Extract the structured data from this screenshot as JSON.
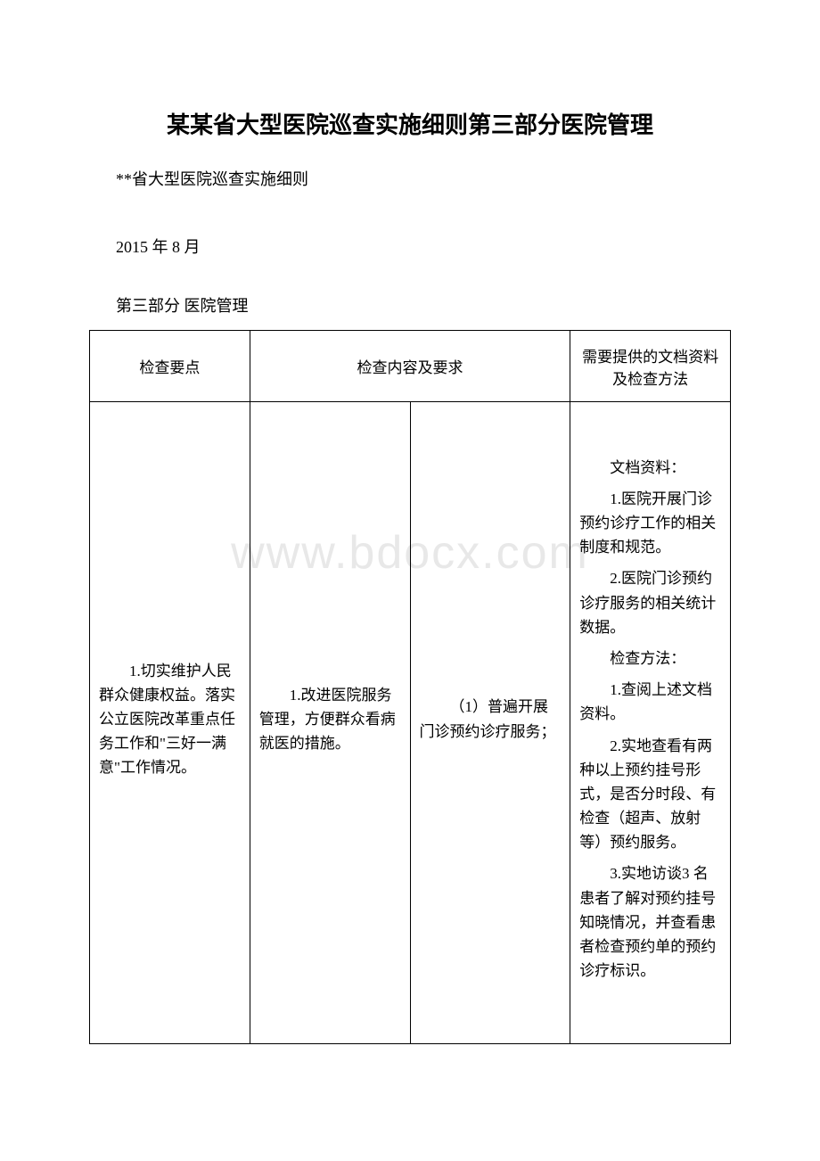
{
  "watermark_text": "www.bdocx.com",
  "watermark_color": "#e8e8e8",
  "title": "某某省大型医院巡查实施细则第三部分医院管理",
  "subtitle": "**省大型医院巡查实施细则",
  "date": "2015 年 8 月",
  "section_label": "第三部分 医院管理",
  "table": {
    "header": {
      "col1": "检查要点",
      "col2": "检查内容及要求",
      "col4": "需要提供的文档资料及检查方法"
    },
    "row1": {
      "col1": "1.切实维护人民群众健康权益。落实公立医院改革重点任务工作和\"三好一满意\"工作情况。",
      "col2": "1.改进医院服务管理，方便群众看病就医的措施。",
      "col3": "（1）普遍开展门诊预约诊疗服务；",
      "col4_items": [
        "文档资料：",
        "1.医院开展门诊预约诊疗工作的相关制度和规范。",
        "2.医院门诊预约诊疗服务的相关统计数据。",
        "检查方法：",
        "1.查阅上述文档资料。",
        "2.实地查看有两种以上预约挂号形式，是否分时段、有检查（超声、放射等）预约服务。",
        "3.实地访谈3 名患者了解对预约挂号知晓情况，并查看患者检查预约单的预约诊疗标识。"
      ]
    }
  },
  "colors": {
    "text": "#000000",
    "background": "#ffffff",
    "border": "#000000"
  }
}
